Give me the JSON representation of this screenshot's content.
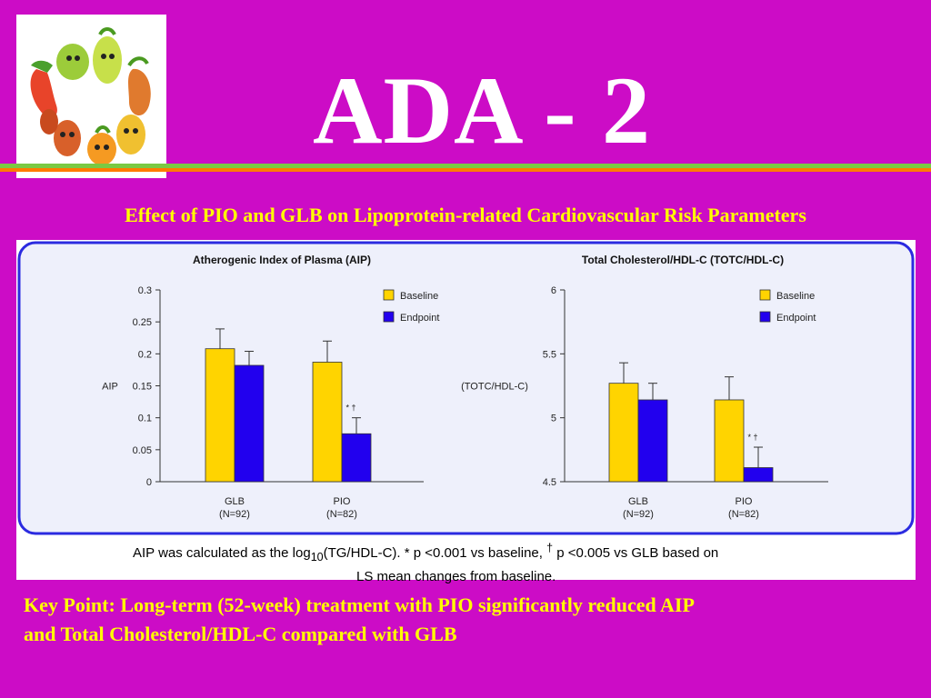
{
  "slide": {
    "title": "ADA - 2",
    "subtitle": "Effect of PIO and GLB on Lipoprotein-related Cardiovascular Risk Parameters",
    "footnote": {
      "part1": "AIP was calculated as the log",
      "sub": "10",
      "part2": "(TG/HDL-C). * p <0.001 vs baseline, ",
      "dagger": "†",
      "part3": " p <0.005 vs GLB based on",
      "line2": "LS mean changes from baseline."
    },
    "key_point_line1": "Key Point: Long-term (52-week) treatment with PIO significantly reduced AIP",
    "key_point_line2": "and Total Cholesterol/HDL-C compared with GLB"
  },
  "colors": {
    "background": "#cc0cc6",
    "title_text": "#ffffff",
    "highlight_text": "#ffff00",
    "baseline": "#ffd400",
    "endpoint": "#2200ee",
    "panel_border": "#2b2be0",
    "panel_fill": "#eef0fb"
  },
  "logo": {
    "icon": "vegetables-characters-logo"
  },
  "chart_data": [
    {
      "type": "bar",
      "title": "Atherogenic Index of Plasma (AIP)",
      "ylabel": "AIP",
      "ylim": [
        0,
        0.3
      ],
      "yticks": [
        "0",
        "0.05",
        "0.1",
        "0.15",
        "0.2",
        "0.25",
        "0.3"
      ],
      "ytick_values": [
        0,
        0.05,
        0.1,
        0.15,
        0.2,
        0.25,
        0.3
      ],
      "categories": [
        {
          "name": "GLB",
          "n": "(N=92)"
        },
        {
          "name": "PIO",
          "n": "(N=82)"
        }
      ],
      "legend": [
        "Baseline",
        "Endpoint"
      ],
      "legend_position": "top-right",
      "series": [
        {
          "name": "Baseline",
          "values": [
            0.208,
            0.187
          ],
          "error": [
            0.031,
            0.033
          ]
        },
        {
          "name": "Endpoint",
          "values": [
            0.182,
            0.075
          ],
          "error": [
            0.022,
            0.025
          ]
        }
      ],
      "annotations": [
        {
          "category": 1,
          "series": 1,
          "text": "* †"
        }
      ]
    },
    {
      "type": "bar",
      "title": "Total Cholesterol/HDL-C (TOTC/HDL-C)",
      "ylabel": "(TOTC/HDL-C)",
      "ylim": [
        4.5,
        6
      ],
      "yticks": [
        "4.5",
        "5",
        "5.5",
        "6"
      ],
      "ytick_values": [
        4.5,
        5,
        5.5,
        6
      ],
      "categories": [
        {
          "name": "GLB",
          "n": "(N=92)"
        },
        {
          "name": "PIO",
          "n": "(N=82)"
        }
      ],
      "legend": [
        "Baseline",
        "Endpoint"
      ],
      "legend_position": "top-right",
      "series": [
        {
          "name": "Baseline",
          "values": [
            5.27,
            5.14
          ],
          "error": [
            0.16,
            0.18
          ]
        },
        {
          "name": "Endpoint",
          "values": [
            5.14,
            4.61
          ],
          "error": [
            0.13,
            0.16
          ]
        }
      ],
      "annotations": [
        {
          "category": 1,
          "series": 1,
          "text": "* †"
        }
      ]
    }
  ]
}
